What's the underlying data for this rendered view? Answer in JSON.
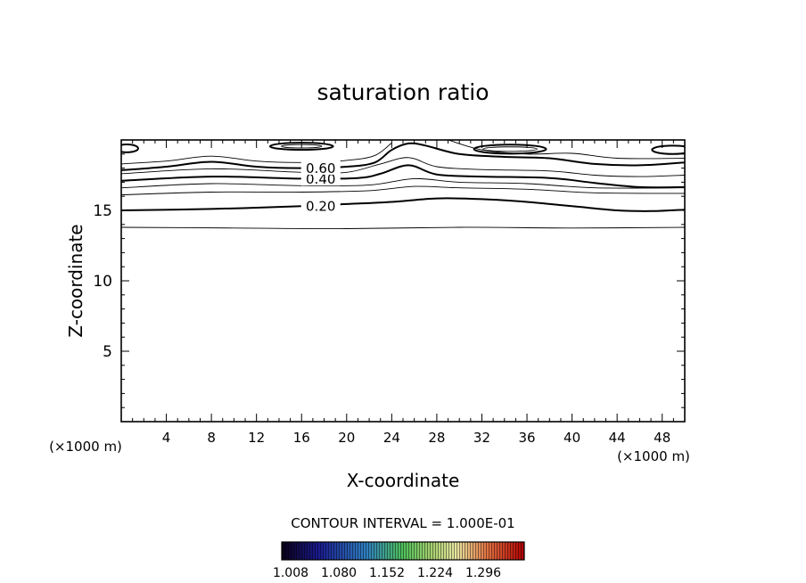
{
  "chart_data": {
    "type": "contour",
    "title": "saturation ratio",
    "xlabel": "X-coordinate",
    "ylabel": "Z-coordinate",
    "x_unit": "(×1000 m)",
    "x_unit_right": "(×1000 m)",
    "xlim": [
      0,
      50
    ],
    "ylim": [
      0,
      20
    ],
    "x_ticks": [
      4,
      8,
      12,
      16,
      20,
      24,
      28,
      32,
      36,
      40,
      44,
      48
    ],
    "y_ticks": [
      5,
      10,
      15
    ],
    "contour_interval_text": "CONTOUR INTERVAL = 1.000E-01",
    "colorbar_ticks": [
      "1.008",
      "1.080",
      "1.152",
      "1.224",
      "1.296"
    ],
    "contours": [
      {
        "level": "0.10",
        "bold": false,
        "points": [
          [
            0,
            13.8
          ],
          [
            10,
            13.75
          ],
          [
            20,
            13.7
          ],
          [
            30,
            13.8
          ],
          [
            40,
            13.75
          ],
          [
            50,
            13.8
          ]
        ]
      },
      {
        "level": "0.20",
        "bold": true,
        "label": "0.20",
        "label_x": 17.7,
        "points": [
          [
            0,
            15.0
          ],
          [
            8,
            15.1
          ],
          [
            16,
            15.3
          ],
          [
            20,
            15.45
          ],
          [
            24,
            15.6
          ],
          [
            28,
            15.85
          ],
          [
            32,
            15.8
          ],
          [
            36,
            15.6
          ],
          [
            40,
            15.3
          ],
          [
            44,
            15.0
          ],
          [
            47,
            14.95
          ],
          [
            50,
            15.05
          ]
        ]
      },
      {
        "level": "0.30",
        "bold": false,
        "points": [
          [
            0,
            16.1
          ],
          [
            8,
            16.3
          ],
          [
            16,
            16.3
          ],
          [
            22,
            16.4
          ],
          [
            26,
            16.7
          ],
          [
            30,
            16.6
          ],
          [
            36,
            16.5
          ],
          [
            42,
            16.25
          ],
          [
            50,
            16.2
          ]
        ]
      },
      {
        "level": "0.35",
        "bold": false,
        "points": [
          [
            0,
            16.6
          ],
          [
            8,
            16.9
          ],
          [
            16,
            16.75
          ],
          [
            22,
            16.8
          ],
          [
            26,
            17.25
          ],
          [
            30,
            17.0
          ],
          [
            36,
            16.9
          ],
          [
            42,
            16.6
          ],
          [
            50,
            16.6
          ]
        ]
      },
      {
        "level": "0.40",
        "bold": true,
        "label": "0.40",
        "label_x": 17.7,
        "points": [
          [
            0,
            17.1
          ],
          [
            8,
            17.4
          ],
          [
            16,
            17.25
          ],
          [
            21,
            17.3
          ],
          [
            23,
            17.6
          ],
          [
            25.5,
            18.2
          ],
          [
            28,
            17.55
          ],
          [
            32,
            17.4
          ],
          [
            38,
            17.3
          ],
          [
            42,
            16.95
          ],
          [
            46,
            16.65
          ],
          [
            50,
            16.65
          ]
        ]
      },
      {
        "level": "0.50",
        "bold": false,
        "points": [
          [
            0,
            17.6
          ],
          [
            8,
            17.95
          ],
          [
            16,
            17.7
          ],
          [
            20,
            17.7
          ],
          [
            23,
            18.3
          ],
          [
            25.5,
            18.75
          ],
          [
            28,
            18.1
          ],
          [
            32,
            17.9
          ],
          [
            38,
            17.8
          ],
          [
            42,
            17.5
          ],
          [
            46,
            17.4
          ],
          [
            50,
            17.5
          ]
        ]
      },
      {
        "level": "0.60",
        "bold": true,
        "label": "0.60",
        "label_x": 17.7,
        "points": [
          [
            0,
            17.85
          ],
          [
            4,
            18.1
          ],
          [
            8,
            18.45
          ],
          [
            12,
            18.1
          ],
          [
            16,
            18.0
          ],
          [
            20,
            18.1
          ],
          [
            22.5,
            18.4
          ],
          [
            24,
            19.3
          ],
          [
            25.5,
            19.75
          ],
          [
            27,
            19.6
          ],
          [
            30,
            19.0
          ],
          [
            34,
            18.8
          ],
          [
            38,
            18.7
          ],
          [
            42,
            18.3
          ],
          [
            46,
            18.2
          ],
          [
            50,
            18.4
          ]
        ]
      },
      {
        "level": "0.70",
        "bold": false,
        "points": [
          [
            0,
            18.3
          ],
          [
            4,
            18.5
          ],
          [
            8,
            18.85
          ],
          [
            12,
            18.5
          ],
          [
            16,
            18.4
          ],
          [
            20,
            18.55
          ],
          [
            22.5,
            18.9
          ],
          [
            24,
            19.8
          ]
        ]
      },
      {
        "level": "0.70",
        "bold": false,
        "points": [
          [
            29,
            20.0
          ],
          [
            32,
            19.3
          ],
          [
            36,
            19.0
          ],
          [
            40,
            19.05
          ],
          [
            44,
            18.7
          ],
          [
            50,
            18.7
          ]
        ]
      }
    ],
    "closed_contours": [
      {
        "cx": 0.5,
        "cy": 19.4,
        "rx": 1.0,
        "ry": 0.28,
        "bold": true
      },
      {
        "cx": 16.0,
        "cy": 19.55,
        "rx": 2.8,
        "ry": 0.25,
        "bold": true
      },
      {
        "cx": 16.0,
        "cy": 19.55,
        "rx": 1.8,
        "ry": 0.12,
        "bold": false
      },
      {
        "cx": 34.5,
        "cy": 19.35,
        "rx": 3.2,
        "ry": 0.32,
        "bold": true
      },
      {
        "cx": 34.5,
        "cy": 19.35,
        "rx": 2.4,
        "ry": 0.16,
        "bold": false
      },
      {
        "cx": 48.9,
        "cy": 19.3,
        "rx": 1.8,
        "ry": 0.3,
        "bold": true
      }
    ]
  }
}
